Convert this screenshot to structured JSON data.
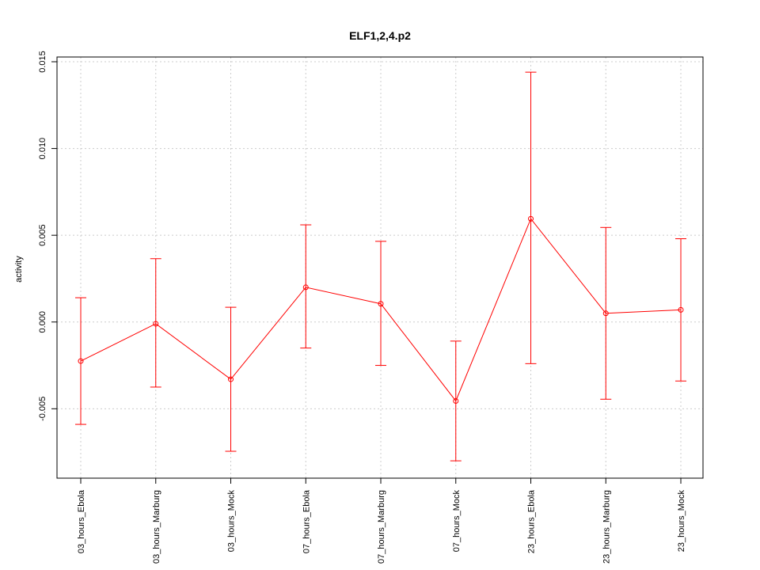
{
  "chart_data": {
    "type": "line",
    "title": "ELF1,2,4.p2",
    "xlabel": "",
    "ylabel": "activity",
    "categories": [
      "03_hours_Ebola",
      "03_hours_Marburg",
      "03_hours_Mock",
      "07_hours_Ebola",
      "07_hours_Marburg",
      "07_hours_Mock",
      "23_hours_Ebola",
      "23_hours_Marburg",
      "23_hours_Mock"
    ],
    "series": [
      {
        "values": [
          -0.00225,
          -0.0001,
          -0.0033,
          0.002,
          0.00105,
          -0.00455,
          0.00595,
          0.0005,
          0.0007
        ],
        "upper": [
          0.0014,
          0.00365,
          0.00085,
          0.0056,
          0.00465,
          -0.0011,
          0.0144,
          0.00545,
          0.0048
        ],
        "lower": [
          -0.0059,
          -0.00375,
          -0.00745,
          -0.0015,
          -0.0025,
          -0.008,
          -0.0024,
          -0.00445,
          -0.0034
        ]
      }
    ],
    "ylim": [
      -0.009,
      0.015
    ],
    "yticks": [
      "-0.005",
      "0.000",
      "0.005",
      "0.010",
      "0.015"
    ],
    "ytick_values": [
      -0.005,
      0.0,
      0.005,
      0.01,
      0.015
    ],
    "grid": true,
    "color": "#ff0000",
    "grid_color": "#cccccc"
  }
}
